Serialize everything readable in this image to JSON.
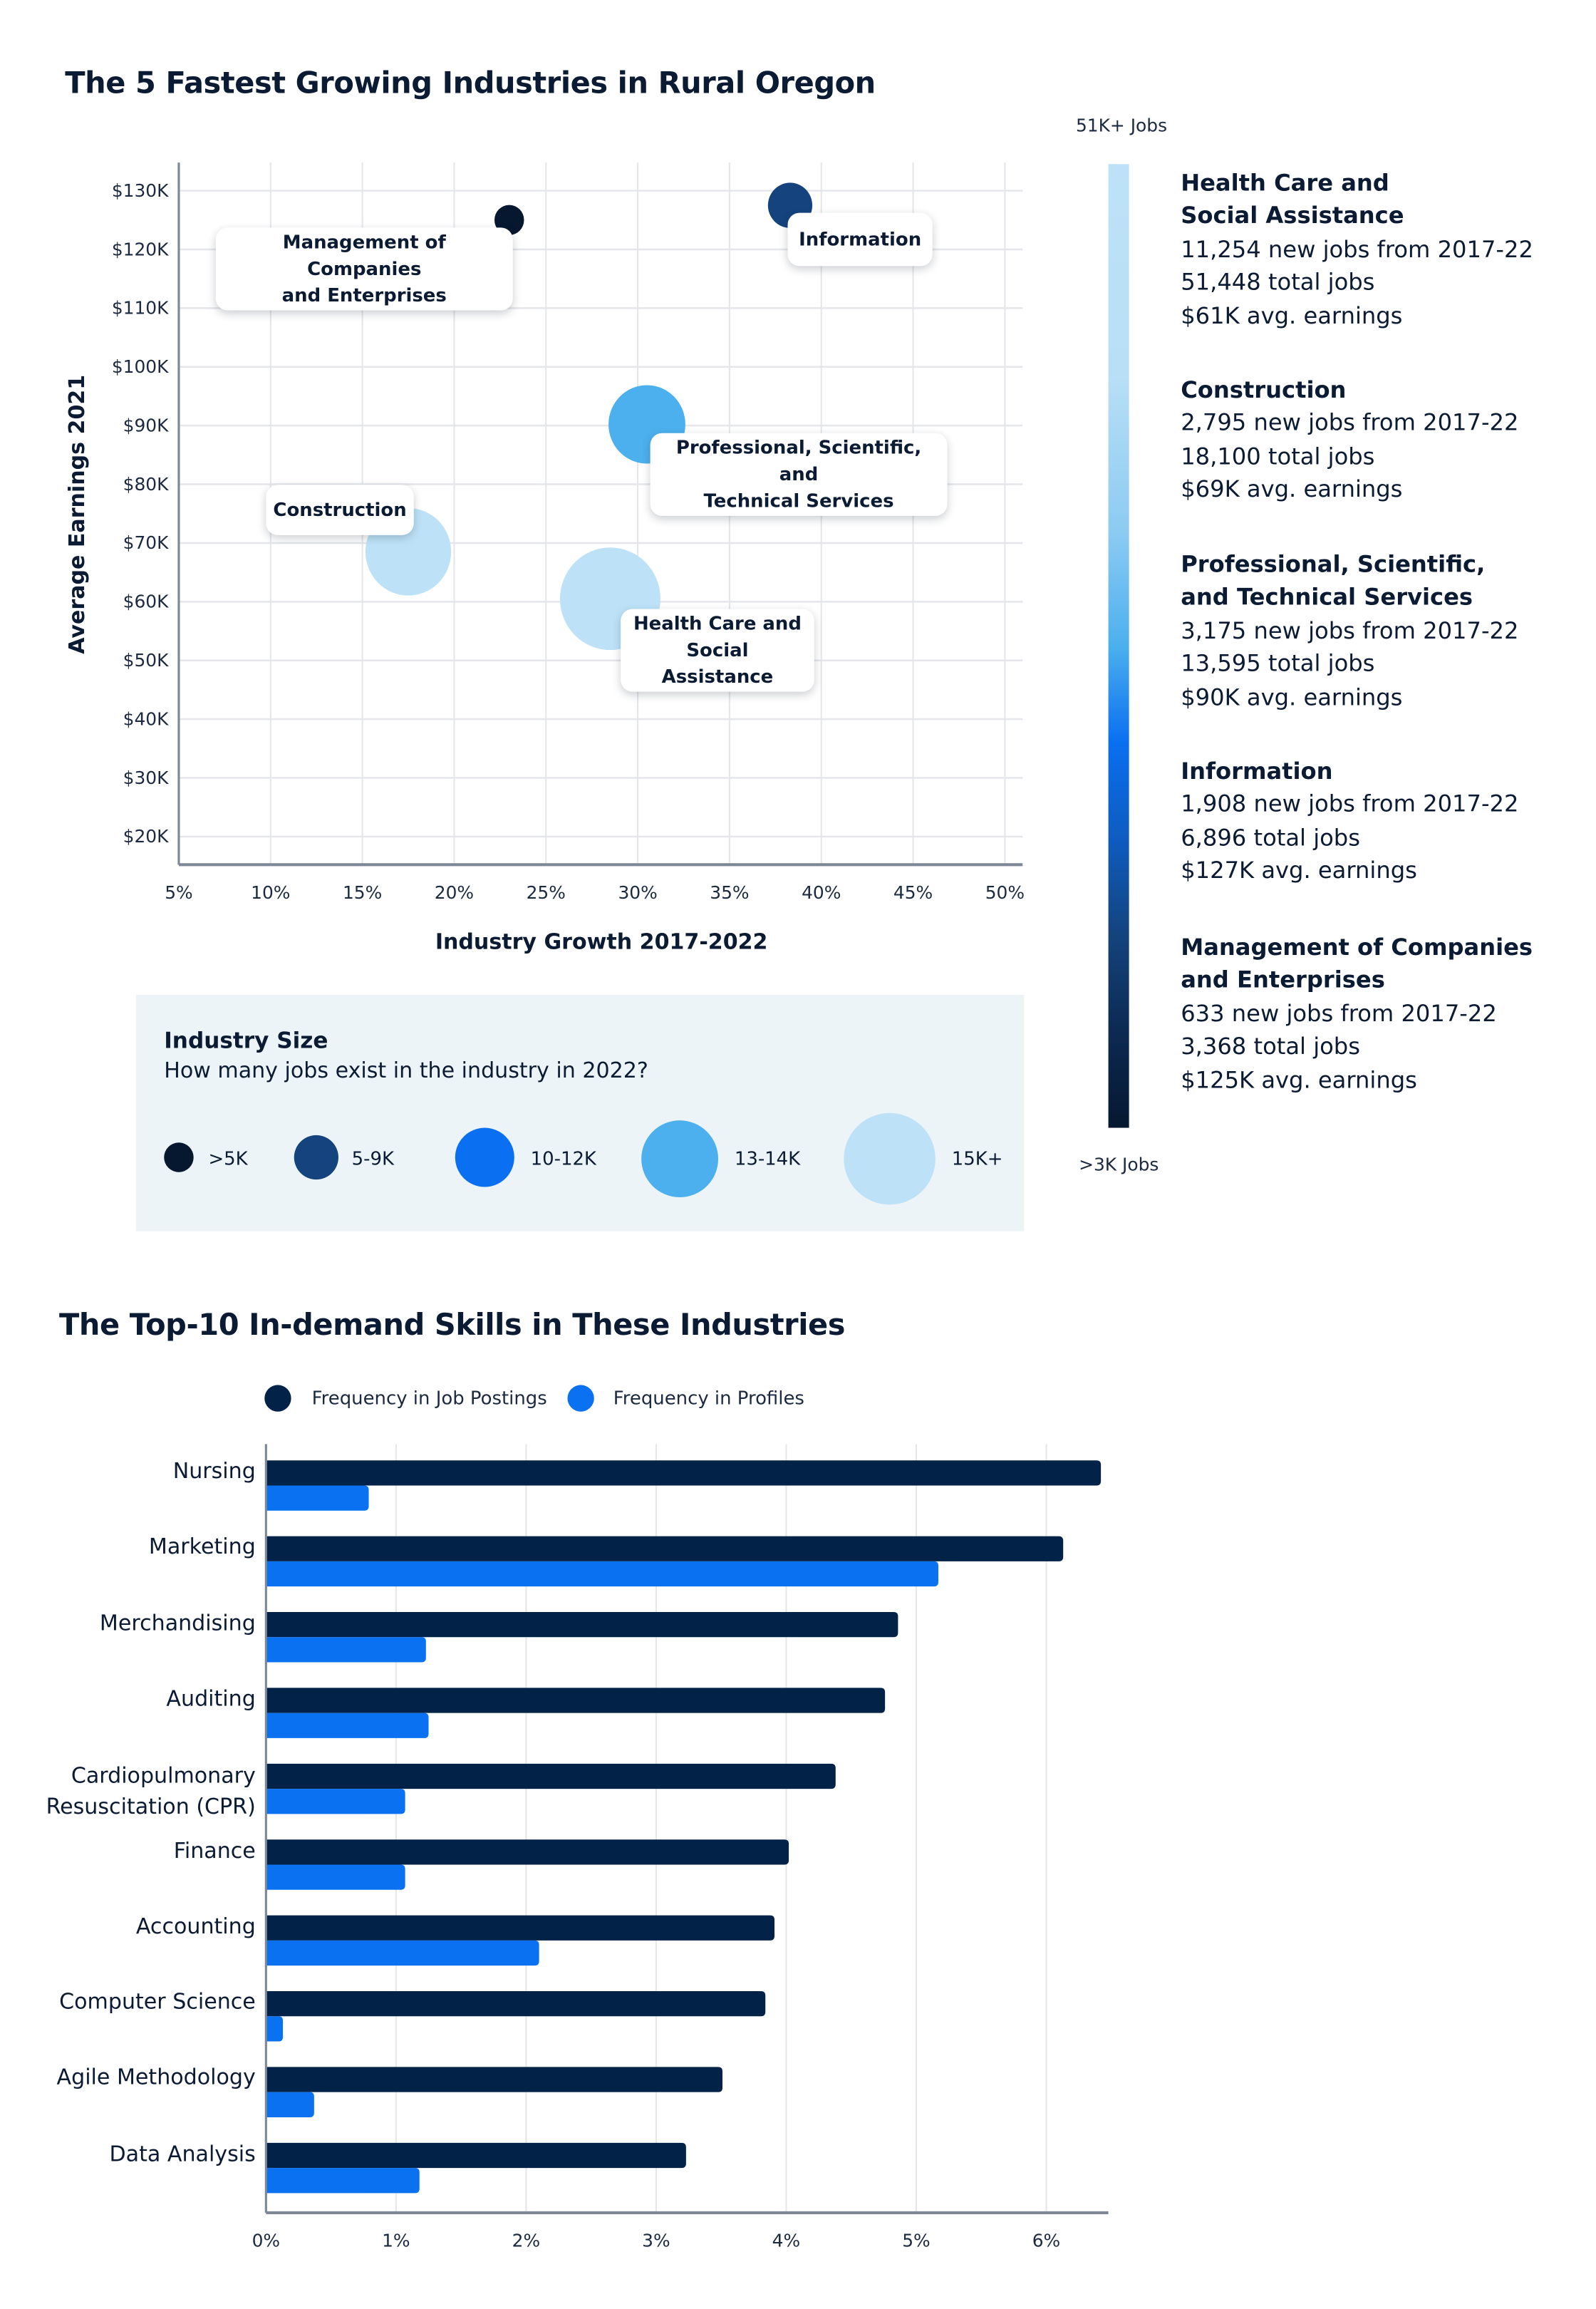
{
  "chart_data": [
    {
      "type": "scatter",
      "title": "The 5 Fastest Growing Industries in Rural Oregon",
      "xlabel": "Industry Growth 2017-2022",
      "ylabel": "Average Earnings 2021",
      "xlim": [
        5,
        51
      ],
      "ylim": [
        15,
        135
      ],
      "x_ticks": [
        5,
        10,
        15,
        20,
        25,
        30,
        35,
        40,
        45,
        50
      ],
      "x_tick_labels": [
        "5%",
        "10%",
        "15%",
        "20%",
        "25%",
        "30%",
        "35%",
        "40%",
        "45%",
        "50%"
      ],
      "y_ticks": [
        130,
        120,
        110,
        100,
        90,
        80,
        70,
        60,
        50,
        40,
        30,
        20
      ],
      "y_tick_labels": [
        "$130K",
        "$120K",
        "$110K",
        "$100K",
        "$90K",
        "$80K",
        "$70K",
        "$60K",
        "$50K",
        "$40K",
        "$30K",
        "$20K"
      ],
      "grid": true,
      "points": [
        {
          "name": "Management of Companies and Enterprises",
          "label": "Management of Companies\nand Enterprises",
          "x": 23.0,
          "y": 125,
          "size_class": ">5K",
          "color": "#051830"
        },
        {
          "name": "Information",
          "label": "Information",
          "x": 38.3,
          "y": 127.5,
          "size_class": "5-9K",
          "color": "#14437d"
        },
        {
          "name": "Professional, Scientific, and Technical Services",
          "label": "Professional, Scientific, and\nTechnical Services",
          "x": 30.5,
          "y": 90.2,
          "size_class": "13-14K",
          "color": "#4cb0ee"
        },
        {
          "name": "Construction",
          "label": "Construction",
          "x": 17.5,
          "y": 68.5,
          "size_class": "15K+",
          "color": "#bde2f7"
        },
        {
          "name": "Health Care and Social Assistance",
          "label": "Health Care and\nSocial Assistance",
          "x": 28.5,
          "y": 60.5,
          "size_class": "15K+",
          "color": "#bde2f7"
        }
      ],
      "size_legend": {
        "title": "Industry Size",
        "subtitle": "How many jobs exist in the industry in 2022?",
        "classes": [
          {
            "label": ">5K",
            "color": "#051830"
          },
          {
            "label": "5-9K",
            "color": "#14437d"
          },
          {
            "label": "10-12K",
            "color": "#0a6ff0"
          },
          {
            "label": "13-14K",
            "color": "#4cb0ee"
          },
          {
            "label": "15K+",
            "color": "#bde2f7"
          }
        ]
      },
      "color_scale": {
        "top_label": "51K+ Jobs",
        "bottom_label": ">3K Jobs"
      }
    },
    {
      "type": "bar",
      "orientation": "horizontal",
      "title": "The Top-10 In-demand Skills in These Industries",
      "categories": [
        "Nursing",
        "Marketing",
        "Merchandising",
        "Auditing",
        "Cardiopulmonary\nResuscitation (CPR)",
        "Finance",
        "Accounting",
        "Computer Science",
        "Agile Methodology",
        "Data Analysis"
      ],
      "series": [
        {
          "name": "Frequency in Job Postings",
          "color": "#022248",
          "values": [
            6.42,
            6.13,
            4.86,
            4.76,
            4.38,
            4.02,
            3.91,
            3.84,
            3.51,
            3.23
          ]
        },
        {
          "name": "Frequency in Profiles",
          "color": "#0a72f0",
          "values": [
            0.79,
            5.17,
            1.23,
            1.25,
            1.07,
            1.07,
            2.1,
            0.13,
            0.37,
            1.18
          ]
        }
      ],
      "xlim": [
        0,
        6.45
      ],
      "x_ticks": [
        0,
        1,
        2,
        3,
        4,
        5,
        6
      ],
      "x_tick_labels": [
        "0%",
        "1%",
        "2%",
        "3%",
        "4%",
        "5%",
        "6%"
      ],
      "xlabel": "",
      "ylabel": "",
      "grid": true,
      "legend_position": "top"
    }
  ],
  "industries": [
    {
      "name": "Health Care and\nSocial Assistance",
      "new_jobs": "11,254 new jobs from 2017-22",
      "total_jobs": "51,448 total jobs",
      "earnings": "$61K avg. earnings"
    },
    {
      "name": "Construction",
      "new_jobs": "2,795 new jobs from 2017-22",
      "total_jobs": "18,100 total jobs",
      "earnings": "$69K avg. earnings"
    },
    {
      "name": "Professional, Scientific,\nand Technical Services",
      "new_jobs": "3,175 new jobs from 2017-22",
      "total_jobs": "13,595 total jobs",
      "earnings": "$90K avg. earnings"
    },
    {
      "name": "Information",
      "new_jobs": "1,908 new jobs from 2017-22",
      "total_jobs": "6,896 total jobs",
      "earnings": "$127K avg. earnings"
    },
    {
      "name": "Management of Companies\nand Enterprises",
      "new_jobs": "633 new jobs from 2017-22",
      "total_jobs": "3,368 total jobs",
      "earnings": "$125K avg. earnings"
    }
  ],
  "colors": {
    "navy": "#0b1b33",
    "bar_dark": "#022248",
    "bar_blue": "#0a72f0",
    "grid": "#e4e6ea",
    "axis": "#7d8896",
    "legend_bg": "#edf4f8"
  }
}
